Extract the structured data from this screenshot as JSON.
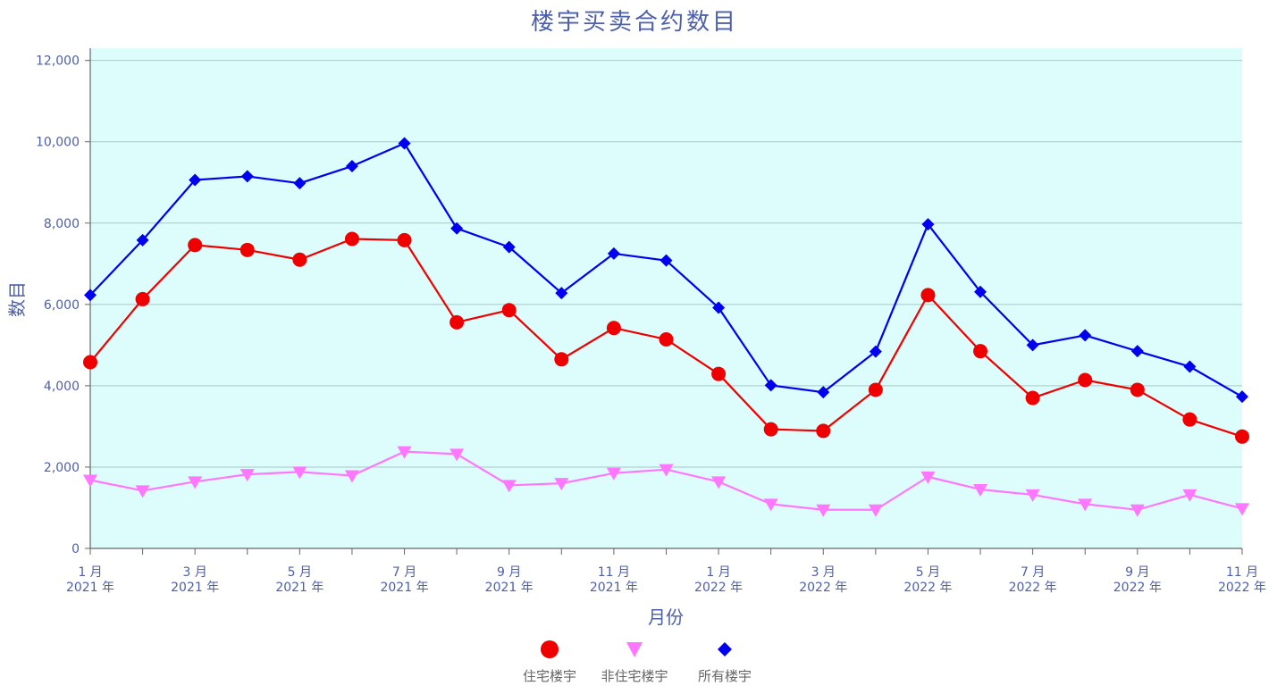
{
  "colors": {
    "plot_background": "#dcfdfb",
    "grid": "#a8c8c8",
    "axis": "#666666",
    "text": "#4d5fa8"
  },
  "chart_data": {
    "type": "line",
    "title": "楼宇买卖合约数目",
    "xlabel": "月份",
    "ylabel": "数目",
    "ylim": [
      0,
      12300
    ],
    "yticks": [
      0,
      2000,
      4000,
      6000,
      8000,
      10000,
      12000
    ],
    "ytick_labels": [
      "0",
      "2,000",
      "4,000",
      "6,000",
      "8,000",
      "10,000",
      "12,000"
    ],
    "grid": true,
    "legend_position": "bottom-center",
    "categories": [
      "2021-01",
      "2021-02",
      "2021-03",
      "2021-04",
      "2021-05",
      "2021-06",
      "2021-07",
      "2021-08",
      "2021-09",
      "2021-10",
      "2021-11",
      "2021-12",
      "2022-01",
      "2022-02",
      "2022-03",
      "2022-04",
      "2022-05",
      "2022-06",
      "2022-07",
      "2022-08",
      "2022-09",
      "2022-10",
      "2022-11"
    ],
    "xtick_labels": [
      {
        "index": 0,
        "month": "1 月",
        "year": "2021 年"
      },
      {
        "index": 2,
        "month": "3 月",
        "year": "2021 年"
      },
      {
        "index": 4,
        "month": "5 月",
        "year": "2021 年"
      },
      {
        "index": 6,
        "month": "7 月",
        "year": "2021 年"
      },
      {
        "index": 8,
        "month": "9 月",
        "year": "2021 年"
      },
      {
        "index": 10,
        "month": "11 月",
        "year": "2021 年"
      },
      {
        "index": 12,
        "month": "1 月",
        "year": "2022 年"
      },
      {
        "index": 14,
        "month": "3 月",
        "year": "2022 年"
      },
      {
        "index": 16,
        "month": "5 月",
        "year": "2022 年"
      },
      {
        "index": 18,
        "month": "7 月",
        "year": "2022 年"
      },
      {
        "index": 20,
        "month": "9 月",
        "year": "2022 年"
      },
      {
        "index": 22,
        "month": "11 月",
        "year": "2022 年"
      }
    ],
    "series": [
      {
        "name": "住宅楼宇",
        "color": "#ee0000",
        "marker": "circle",
        "values": [
          4580,
          6130,
          7460,
          7340,
          7100,
          7610,
          7580,
          5560,
          5860,
          4650,
          5420,
          5140,
          4290,
          2930,
          2890,
          3900,
          6230,
          4850,
          3700,
          4140,
          3900,
          3170,
          2750
        ]
      },
      {
        "name": "非住宅楼宇",
        "color": "#ff77ff",
        "marker": "triangle-down",
        "values": [
          1680,
          1420,
          1640,
          1820,
          1880,
          1790,
          2380,
          2320,
          1550,
          1600,
          1850,
          1940,
          1640,
          1090,
          950,
          950,
          1760,
          1450,
          1320,
          1090,
          950,
          1320,
          980
        ]
      },
      {
        "name": "所有楼宇",
        "color": "#0000ee",
        "marker": "diamond",
        "values": [
          6230,
          7580,
          9060,
          9150,
          8980,
          9400,
          9960,
          7870,
          7410,
          6280,
          7250,
          7080,
          5920,
          4010,
          3840,
          4840,
          7970,
          6310,
          5000,
          5240,
          4850,
          4470,
          3730
        ]
      }
    ]
  }
}
